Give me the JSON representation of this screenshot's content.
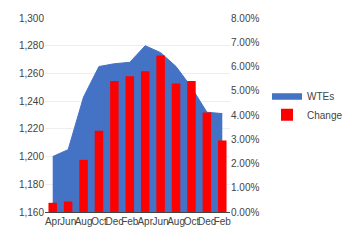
{
  "chart_data": {
    "type": "combo",
    "categories": [
      "Apr",
      "Jun",
      "Aug",
      "Oct",
      "Dec",
      "Feb",
      "Apr",
      "Jun",
      "Aug",
      "Oct",
      "Dec",
      "Feb"
    ],
    "series": [
      {
        "name": "WTEs",
        "type": "area",
        "color": "#4472C4",
        "values": [
          1200,
          1205,
          1243,
          1265,
          1267,
          1268,
          1280,
          1275,
          1265,
          1250,
          1232,
          1231
        ]
      },
      {
        "name": "Change",
        "type": "bar",
        "color": "#FF0000",
        "axis": "y2",
        "values": [
          0.0038,
          0.0043,
          0.0215,
          0.0335,
          0.054,
          0.056,
          0.058,
          0.0645,
          0.053,
          0.054,
          0.041,
          0.0295
        ]
      }
    ],
    "ylim": [
      1160,
      1300
    ],
    "yticks": [
      {
        "value": 1160,
        "label": "1,160"
      },
      {
        "value": 1180,
        "label": "1,180"
      },
      {
        "value": 1200,
        "label": "1,200"
      },
      {
        "value": 1220,
        "label": "1,220"
      },
      {
        "value": 1240,
        "label": "1,240"
      },
      {
        "value": 1260,
        "label": "1,260"
      },
      {
        "value": 1280,
        "label": "1,280"
      },
      {
        "value": 1300,
        "label": "1,300"
      }
    ],
    "y2lim": [
      0.0,
      0.08
    ],
    "y2ticks": [
      {
        "value": 0.0,
        "label": "0.00%"
      },
      {
        "value": 0.01,
        "label": "1.00%"
      },
      {
        "value": 0.02,
        "label": "2.00%"
      },
      {
        "value": 0.03,
        "label": "3.00%"
      },
      {
        "value": 0.04,
        "label": "4.00%"
      },
      {
        "value": 0.05,
        "label": "5.00%"
      },
      {
        "value": 0.06,
        "label": "6.00%"
      },
      {
        "value": 0.07,
        "label": "7.00%"
      },
      {
        "value": 0.08,
        "label": "8.00%"
      }
    ],
    "grid": true,
    "legend": "right"
  }
}
